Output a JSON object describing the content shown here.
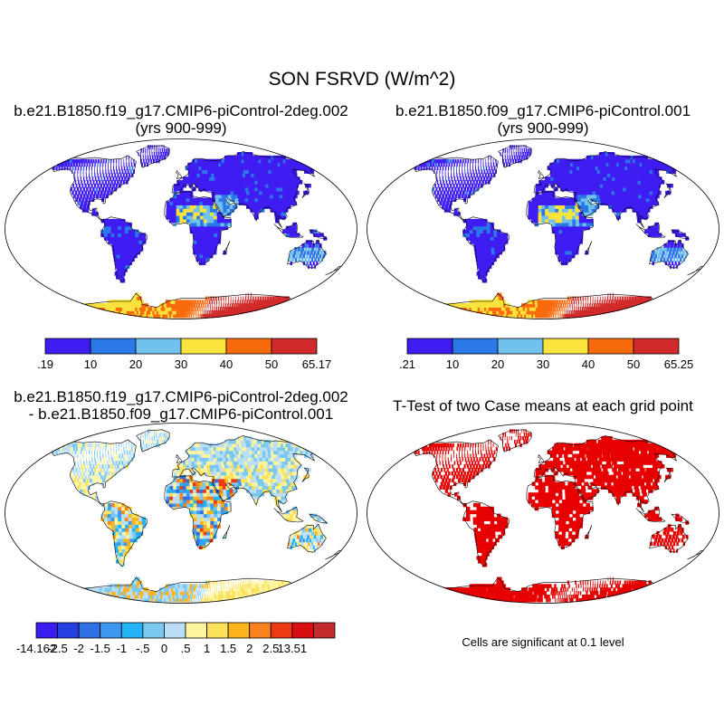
{
  "main_title": "SON FSRVD (W/m^2)",
  "panels": [
    {
      "title_line1": "b.e21.B1850.f19_g17.CMIP6-piControl-2deg.002",
      "title_line2": "(yrs 900-999)",
      "colorbar": {
        "labels": [
          ".19",
          "10",
          "20",
          "30",
          "40",
          "50",
          "65.17"
        ],
        "colors": [
          "#3e1cf2",
          "#2b78e8",
          "#70c2ec",
          "#fbe33e",
          "#f96a0c",
          "#d22a2a"
        ]
      }
    },
    {
      "title_line1": "b.e21.B1850.f09_g17.CMIP6-piControl.001",
      "title_line2": "(yrs 900-999)",
      "colorbar": {
        "labels": [
          ".21",
          "10",
          "20",
          "30",
          "40",
          "50",
          "65.25"
        ],
        "colors": [
          "#3e1cf2",
          "#2b78e8",
          "#70c2ec",
          "#fbe33e",
          "#f96a0c",
          "#d22a2a"
        ]
      }
    },
    {
      "title_line1": "b.e21.B1850.f19_g17.CMIP6-piControl-2deg.002",
      "title_line2": "- b.e21.B1850.f09_g17.CMIP6-piControl.001",
      "colorbar": {
        "labels": [
          "-14.162",
          "-2.5",
          "-2",
          "-1.5",
          "-1",
          "-.5",
          "0",
          ".5",
          "1",
          "1.5",
          "2",
          "2.5",
          "13.51"
        ],
        "colors": [
          "#3a1ef0",
          "#2540e0",
          "#2f6fe4",
          "#3c97ee",
          "#22b4f5",
          "#7ac8f0",
          "#b9def5",
          "#fdf4a0",
          "#fde05a",
          "#fcb31c",
          "#f7821e",
          "#ec3a12",
          "#d80e10",
          "#c42a2a"
        ]
      }
    },
    {
      "title_line1": "T-Test of two Case means at each grid point",
      "note": "Cells are significant at 0.1 level",
      "fill_color": "#e60000"
    }
  ]
}
